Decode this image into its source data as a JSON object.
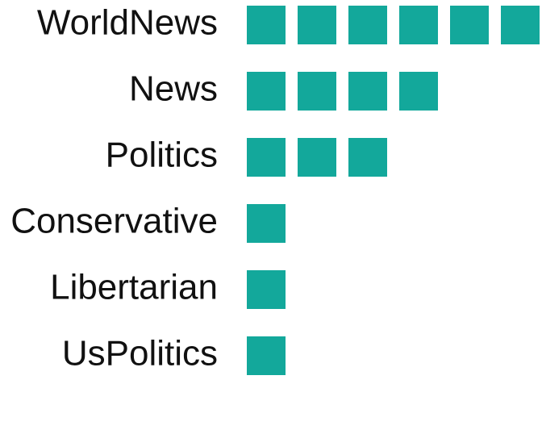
{
  "chart_data": {
    "type": "bar",
    "style": "unit-squares",
    "categories": [
      "WorldNews",
      "News",
      "Politics",
      "Conservative",
      "Libertarian",
      "UsPolitics"
    ],
    "values": [
      6,
      4,
      3,
      1,
      1,
      1
    ],
    "grid": false,
    "legend": "none"
  },
  "colors": {
    "square": "#13a89b",
    "label": "#111111",
    "background": "#ffffff"
  }
}
